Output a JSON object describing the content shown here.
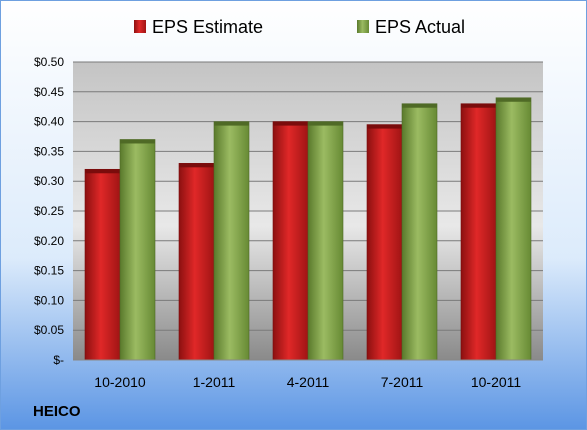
{
  "company_label": "HEICO",
  "colors": {
    "estimate": "#d42020",
    "estimate_dark": "#7a0c0c",
    "actual": "#8aab52",
    "actual_dark": "#4f6a26",
    "frame": "#6ea0e0"
  },
  "chart_data": {
    "type": "bar",
    "categories": [
      "10-2010",
      "1-2011",
      "4-2011",
      "7-2011",
      "10-2011"
    ],
    "series": [
      {
        "name": "EPS Estimate",
        "values": [
          0.32,
          0.33,
          0.4,
          0.395,
          0.43
        ]
      },
      {
        "name": "EPS Actual",
        "values": [
          0.37,
          0.4,
          0.4,
          0.43,
          0.44
        ]
      }
    ],
    "ylim": [
      0,
      0.5
    ],
    "yticks": [
      0,
      0.05,
      0.1,
      0.15,
      0.2,
      0.25,
      0.3,
      0.35,
      0.4,
      0.45,
      0.5
    ],
    "ytick_labels": [
      "$-",
      "$0.05",
      "$0.10",
      "$0.15",
      "$0.20",
      "$0.25",
      "$0.30",
      "$0.35",
      "$0.40",
      "$0.45",
      "$0.50"
    ],
    "legend_position": "top",
    "grid": true
  }
}
